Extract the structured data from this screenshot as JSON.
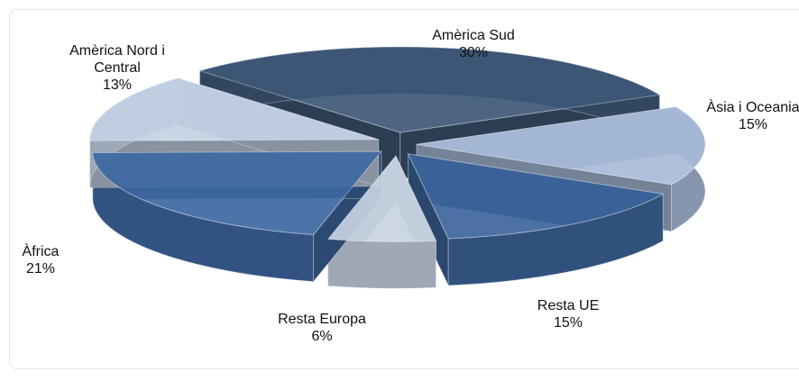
{
  "chart_data": {
    "type": "pie",
    "categories": [
      "Amèrica Sud",
      "Àsia i Oceania",
      "Resta UE",
      "Resta Europa",
      "Àfrica",
      "Amèrica Nord i Central"
    ],
    "values": [
      30,
      15,
      15,
      6,
      21,
      13
    ],
    "value_labels": [
      "30%",
      "15%",
      "15%",
      "6%",
      "21%",
      "13%"
    ],
    "colors": [
      "#3e5878",
      "#a7bbd9",
      "#3d659c",
      "#c8d2e2",
      "#3e68a2",
      "#c3d1e5"
    ]
  }
}
